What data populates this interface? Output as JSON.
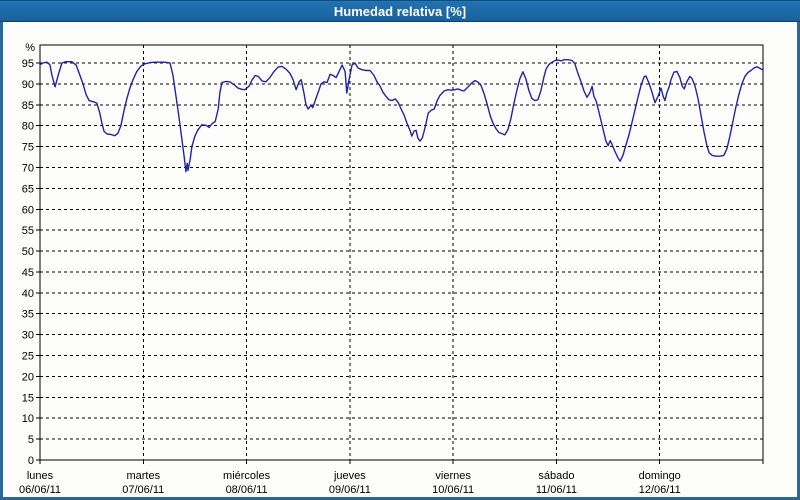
{
  "window": {
    "title": "Humedad relativa [%]"
  },
  "colors": {
    "titlebar_top": "#2374b2",
    "titlebar_bottom": "#175e99",
    "titlebar_text": "#ffffff",
    "frame_border": "#2b689a",
    "chart_background": "#fdfdfb",
    "plot_border": "#000000",
    "gridline": "#000000",
    "axis_text": "#000000",
    "series_line": "#2222aa"
  },
  "chart_data": {
    "type": "line",
    "title": "Humedad relativa [%]",
    "y_unit_label": "%",
    "ylabel": "",
    "xlabel": "",
    "ylim": [
      0,
      99
    ],
    "y_ticks": [
      0,
      5,
      10,
      15,
      20,
      25,
      30,
      35,
      40,
      45,
      50,
      55,
      60,
      65,
      70,
      75,
      80,
      85,
      90,
      95
    ],
    "grid": "dashed",
    "legend_position": "none",
    "x_axis": {
      "range_hours": [
        0,
        168
      ],
      "hours_per_day": 24,
      "days": [
        {
          "name": "lunes",
          "date": "06/06/11"
        },
        {
          "name": "martes",
          "date": "07/06/11"
        },
        {
          "name": "miércoles",
          "date": "08/06/11"
        },
        {
          "name": "jueves",
          "date": "09/06/11"
        },
        {
          "name": "viernes",
          "date": "10/06/11"
        },
        {
          "name": "sábado",
          "date": "11/06/11"
        },
        {
          "name": "domingo",
          "date": "12/06/11"
        }
      ]
    },
    "series": [
      {
        "name": "Humedad relativa",
        "unit": "%",
        "points": [
          [
            0,
            94.6
          ],
          [
            0.7,
            95.0
          ],
          [
            1.6,
            95.2
          ],
          [
            2.3,
            94.6
          ],
          [
            2.8,
            92.0
          ],
          [
            3.5,
            89.3
          ],
          [
            4.2,
            92.0
          ],
          [
            5.1,
            95.0
          ],
          [
            6.0,
            95.3
          ],
          [
            7.4,
            95.3
          ],
          [
            8.4,
            94.5
          ],
          [
            9.3,
            92.0
          ],
          [
            10.0,
            90.0
          ],
          [
            10.7,
            87.5
          ],
          [
            11.4,
            86.0
          ],
          [
            12.5,
            85.7
          ],
          [
            13.2,
            85.4
          ],
          [
            13.9,
            83.0
          ],
          [
            14.4,
            80.5
          ],
          [
            14.9,
            78.6
          ],
          [
            15.6,
            78.0
          ],
          [
            16.5,
            77.9
          ],
          [
            17.4,
            77.6
          ],
          [
            18.1,
            78.2
          ],
          [
            18.8,
            80.0
          ],
          [
            19.5,
            83.5
          ],
          [
            20.2,
            86.5
          ],
          [
            20.9,
            89.0
          ],
          [
            21.6,
            91.0
          ],
          [
            22.5,
            93.0
          ],
          [
            23.5,
            94.3
          ],
          [
            24.4,
            94.8
          ],
          [
            25.6,
            95.1
          ],
          [
            26.7,
            95.2
          ],
          [
            27.9,
            95.2
          ],
          [
            29.0,
            95.2
          ],
          [
            30.2,
            95.0
          ],
          [
            30.9,
            92.0
          ],
          [
            31.6,
            87.0
          ],
          [
            32.3,
            82.0
          ],
          [
            33.0,
            76.5
          ],
          [
            33.5,
            72.5
          ],
          [
            33.9,
            69.0
          ],
          [
            34.2,
            71.0
          ],
          [
            34.4,
            69.3
          ],
          [
            34.9,
            72.0
          ],
          [
            35.3,
            75.0
          ],
          [
            36.0,
            77.5
          ],
          [
            36.7,
            79.0
          ],
          [
            37.6,
            80.2
          ],
          [
            38.6,
            80.1
          ],
          [
            39.3,
            79.6
          ],
          [
            40.0,
            80.5
          ],
          [
            40.7,
            81.0
          ],
          [
            41.4,
            84.0
          ],
          [
            41.8,
            88.0
          ],
          [
            42.3,
            90.3
          ],
          [
            43.2,
            90.6
          ],
          [
            44.1,
            90.5
          ],
          [
            45.1,
            89.8
          ],
          [
            46.0,
            89.0
          ],
          [
            46.9,
            88.7
          ],
          [
            47.6,
            88.6
          ],
          [
            48.6,
            89.5
          ],
          [
            49.3,
            91.0
          ],
          [
            50.0,
            92.0
          ],
          [
            50.7,
            91.8
          ],
          [
            51.6,
            90.7
          ],
          [
            52.5,
            90.5
          ],
          [
            53.4,
            91.5
          ],
          [
            54.4,
            93.0
          ],
          [
            55.3,
            94.0
          ],
          [
            56.2,
            94.2
          ],
          [
            57.2,
            93.5
          ],
          [
            58.1,
            92.5
          ],
          [
            58.8,
            91.0
          ],
          [
            59.5,
            88.6
          ],
          [
            60.2,
            90.5
          ],
          [
            60.7,
            91.0
          ],
          [
            61.3,
            88.0
          ],
          [
            61.8,
            85.0
          ],
          [
            62.3,
            84.0
          ],
          [
            63.0,
            84.9
          ],
          [
            63.4,
            84.3
          ],
          [
            64.1,
            86.5
          ],
          [
            64.8,
            88.5
          ],
          [
            65.3,
            90.0
          ],
          [
            66.0,
            90.5
          ],
          [
            66.7,
            90.3
          ],
          [
            67.4,
            92.3
          ],
          [
            68.1,
            92.0
          ],
          [
            68.8,
            91.5
          ],
          [
            69.5,
            93.0
          ],
          [
            70.2,
            94.5
          ],
          [
            70.9,
            93.0
          ],
          [
            71.3,
            87.8
          ],
          [
            71.8,
            91.0
          ],
          [
            72.5,
            94.5
          ],
          [
            73.2,
            95.0
          ],
          [
            73.9,
            93.8
          ],
          [
            74.8,
            93.4
          ],
          [
            75.8,
            93.2
          ],
          [
            76.7,
            93.2
          ],
          [
            77.6,
            92.0
          ],
          [
            78.3,
            90.5
          ],
          [
            79.0,
            89.5
          ],
          [
            79.7,
            88.0
          ],
          [
            80.4,
            87.0
          ],
          [
            81.1,
            86.2
          ],
          [
            81.8,
            86.0
          ],
          [
            82.5,
            86.4
          ],
          [
            83.2,
            85.6
          ],
          [
            83.9,
            84.0
          ],
          [
            84.6,
            82.5
          ],
          [
            85.3,
            80.5
          ],
          [
            86.0,
            78.8
          ],
          [
            86.4,
            77.5
          ],
          [
            86.9,
            78.7
          ],
          [
            87.4,
            78.9
          ],
          [
            87.8,
            77.0
          ],
          [
            88.3,
            76.3
          ],
          [
            88.8,
            77.0
          ],
          [
            89.2,
            78.5
          ],
          [
            89.7,
            80.5
          ],
          [
            90.2,
            83.0
          ],
          [
            90.9,
            83.7
          ],
          [
            91.6,
            84.0
          ],
          [
            92.3,
            86.0
          ],
          [
            92.9,
            87.2
          ],
          [
            93.9,
            88.3
          ],
          [
            94.8,
            88.6
          ],
          [
            95.5,
            88.5
          ],
          [
            96.4,
            88.6
          ],
          [
            97.1,
            88.8
          ],
          [
            97.8,
            88.5
          ],
          [
            98.5,
            88.3
          ],
          [
            99.5,
            89.3
          ],
          [
            100.4,
            90.3
          ],
          [
            101.1,
            90.8
          ],
          [
            101.8,
            90.4
          ],
          [
            102.5,
            89.6
          ],
          [
            103.2,
            87.6
          ],
          [
            103.9,
            85.2
          ],
          [
            104.6,
            82.4
          ],
          [
            105.3,
            80.5
          ],
          [
            106.0,
            79.2
          ],
          [
            106.6,
            78.4
          ],
          [
            107.3,
            78.1
          ],
          [
            108.0,
            77.8
          ],
          [
            108.7,
            79.0
          ],
          [
            109.4,
            81.6
          ],
          [
            110.1,
            85.2
          ],
          [
            110.8,
            88.4
          ],
          [
            111.5,
            91.2
          ],
          [
            112.2,
            92.9
          ],
          [
            112.9,
            91.2
          ],
          [
            113.6,
            88.4
          ],
          [
            114.3,
            86.5
          ],
          [
            115.0,
            86.0
          ],
          [
            115.7,
            86.2
          ],
          [
            116.4,
            88.4
          ],
          [
            117.1,
            91.6
          ],
          [
            117.6,
            93.6
          ],
          [
            118.3,
            94.7
          ],
          [
            119.0,
            95.2
          ],
          [
            119.7,
            95.6
          ],
          [
            120.4,
            95.7
          ],
          [
            121.1,
            95.5
          ],
          [
            121.8,
            95.8
          ],
          [
            122.7,
            95.8
          ],
          [
            123.6,
            95.6
          ],
          [
            124.3,
            94.8
          ],
          [
            125.0,
            92.5
          ],
          [
            125.7,
            90.5
          ],
          [
            126.4,
            88.3
          ],
          [
            127.1,
            86.8
          ],
          [
            127.8,
            88.0
          ],
          [
            128.3,
            89.4
          ],
          [
            128.7,
            87.0
          ],
          [
            129.2,
            86.0
          ],
          [
            129.7,
            84.0
          ],
          [
            130.4,
            81.0
          ],
          [
            131.1,
            78.0
          ],
          [
            131.5,
            76.3
          ],
          [
            132.0,
            75.2
          ],
          [
            132.5,
            76.4
          ],
          [
            132.9,
            75.6
          ],
          [
            133.6,
            73.8
          ],
          [
            134.3,
            72.3
          ],
          [
            134.8,
            71.5
          ],
          [
            135.5,
            73.0
          ],
          [
            136.2,
            75.5
          ],
          [
            136.9,
            78.0
          ],
          [
            137.6,
            81.0
          ],
          [
            138.3,
            84.0
          ],
          [
            139.0,
            87.0
          ],
          [
            139.7,
            89.8
          ],
          [
            140.4,
            91.7
          ],
          [
            140.8,
            91.9
          ],
          [
            141.5,
            90.2
          ],
          [
            142.2,
            88.0
          ],
          [
            142.9,
            85.5
          ],
          [
            143.6,
            87.0
          ],
          [
            144.3,
            89.0
          ],
          [
            144.8,
            87.0
          ],
          [
            145.2,
            86.0
          ],
          [
            145.7,
            88.0
          ],
          [
            146.2,
            89.3
          ],
          [
            146.6,
            91.0
          ],
          [
            147.3,
            92.8
          ],
          [
            148.0,
            93.0
          ],
          [
            148.7,
            91.5
          ],
          [
            149.2,
            89.5
          ],
          [
            149.7,
            88.8
          ],
          [
            150.3,
            90.5
          ],
          [
            151.0,
            91.8
          ],
          [
            151.5,
            91.3
          ],
          [
            152.2,
            89.5
          ],
          [
            152.9,
            86.5
          ],
          [
            153.6,
            82.5
          ],
          [
            154.3,
            78.5
          ],
          [
            155.0,
            75.0
          ],
          [
            155.5,
            73.5
          ],
          [
            156.2,
            72.9
          ],
          [
            157.1,
            72.7
          ],
          [
            158.0,
            72.7
          ],
          [
            158.9,
            72.9
          ],
          [
            159.6,
            74.5
          ],
          [
            160.3,
            77.5
          ],
          [
            161.0,
            81.0
          ],
          [
            161.7,
            84.5
          ],
          [
            162.4,
            87.5
          ],
          [
            163.1,
            90.0
          ],
          [
            163.8,
            91.8
          ],
          [
            164.5,
            92.7
          ],
          [
            165.2,
            93.2
          ],
          [
            165.9,
            93.8
          ],
          [
            166.6,
            94.1
          ],
          [
            167.3,
            93.7
          ],
          [
            168.0,
            93.3
          ]
        ]
      }
    ]
  }
}
